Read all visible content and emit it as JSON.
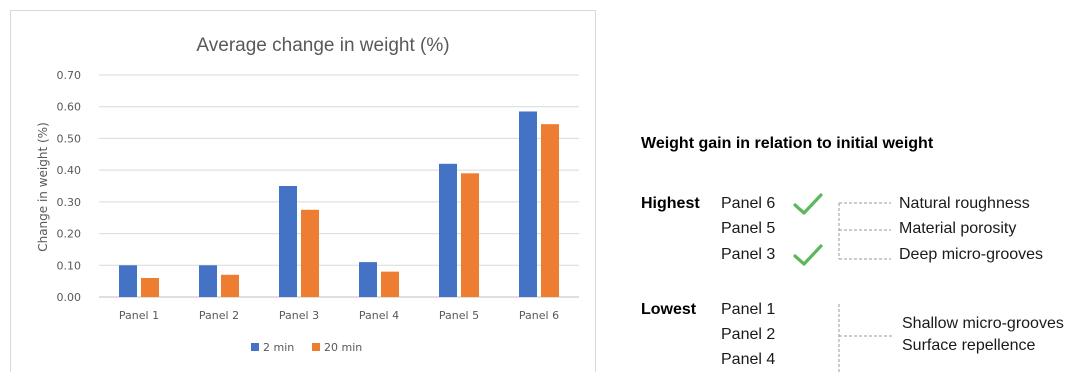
{
  "chart_data": {
    "type": "bar",
    "title": "Average change in weight (%)",
    "xlabel": "",
    "ylabel": "Change in weight (%)",
    "categories": [
      "Panel 1",
      "Panel 2",
      "Panel 3",
      "Panel 4",
      "Panel 5",
      "Panel 6"
    ],
    "series": [
      {
        "name": "2 min",
        "color": "#4472c4",
        "values": [
          0.1,
          0.1,
          0.35,
          0.11,
          0.42,
          0.585
        ]
      },
      {
        "name": "20 min",
        "color": "#ed7d31",
        "values": [
          0.06,
          0.07,
          0.275,
          0.08,
          0.39,
          0.545
        ]
      }
    ],
    "ylim": [
      0,
      0.7
    ],
    "yticks": [
      "0.00",
      "0.10",
      "0.20",
      "0.30",
      "0.40",
      "0.50",
      "0.60",
      "0.70"
    ],
    "grid": true,
    "legend_position": "bottom"
  },
  "summary": {
    "heading": "Weight gain in relation to initial weight",
    "highest": {
      "label": "Highest",
      "panels": [
        {
          "name": "Panel 6",
          "check": true
        },
        {
          "name": "Panel 5",
          "check": false
        },
        {
          "name": "Panel 3",
          "check": true
        }
      ],
      "reasons": [
        "Natural roughness",
        "Material porosity",
        "Deep micro-grooves"
      ]
    },
    "lowest": {
      "label": "Lowest",
      "panels": [
        {
          "name": "Panel 1"
        },
        {
          "name": "Panel 2"
        },
        {
          "name": "Panel 4"
        }
      ],
      "reasons": [
        "Shallow micro-grooves",
        "Surface repellence"
      ]
    },
    "check_color": "#5cb85c",
    "bracket_color": "#999999"
  }
}
